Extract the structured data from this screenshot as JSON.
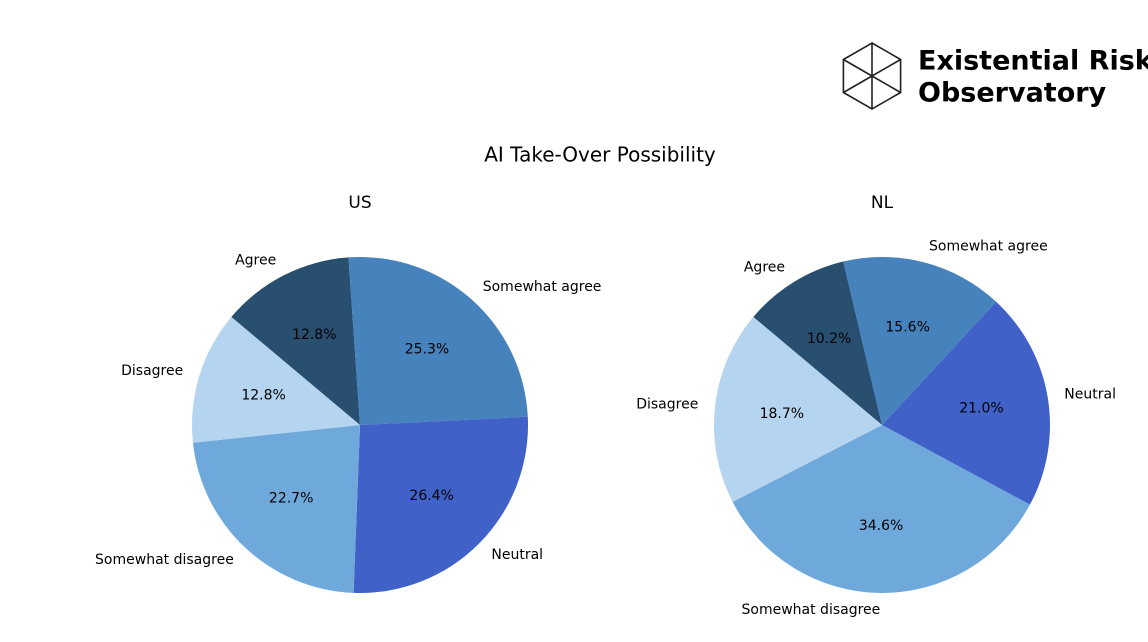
{
  "logo": {
    "lines": [
      "Existential Risk",
      "Observatory"
    ]
  },
  "title": "AI Take-Over Possibility",
  "chart_data": [
    {
      "type": "pie",
      "title": "US",
      "categories": [
        "Agree",
        "Somewhat agree",
        "Neutral",
        "Somewhat disagree",
        "Disagree"
      ],
      "values": [
        12.8,
        25.3,
        26.4,
        22.7,
        12.8
      ],
      "value_labels": [
        "12.8%",
        "25.3%",
        "26.4%",
        "22.7%",
        "12.8%"
      ],
      "colors": [
        "#284e70",
        "#4682bb",
        "#4062c8",
        "#6fa9dc",
        "#b5d4ef"
      ]
    },
    {
      "type": "pie",
      "title": "NL",
      "categories": [
        "Agree",
        "Somewhat agree",
        "Neutral",
        "Somewhat disagree",
        "Disagree"
      ],
      "values": [
        10.2,
        15.6,
        21.0,
        34.6,
        18.7
      ],
      "value_labels": [
        "10.2%",
        "15.6%",
        "21.0%",
        "34.6%",
        "18.7%"
      ],
      "colors": [
        "#284e70",
        "#4682bb",
        "#4062c8",
        "#6fa9dc",
        "#b5d4ef"
      ]
    }
  ]
}
